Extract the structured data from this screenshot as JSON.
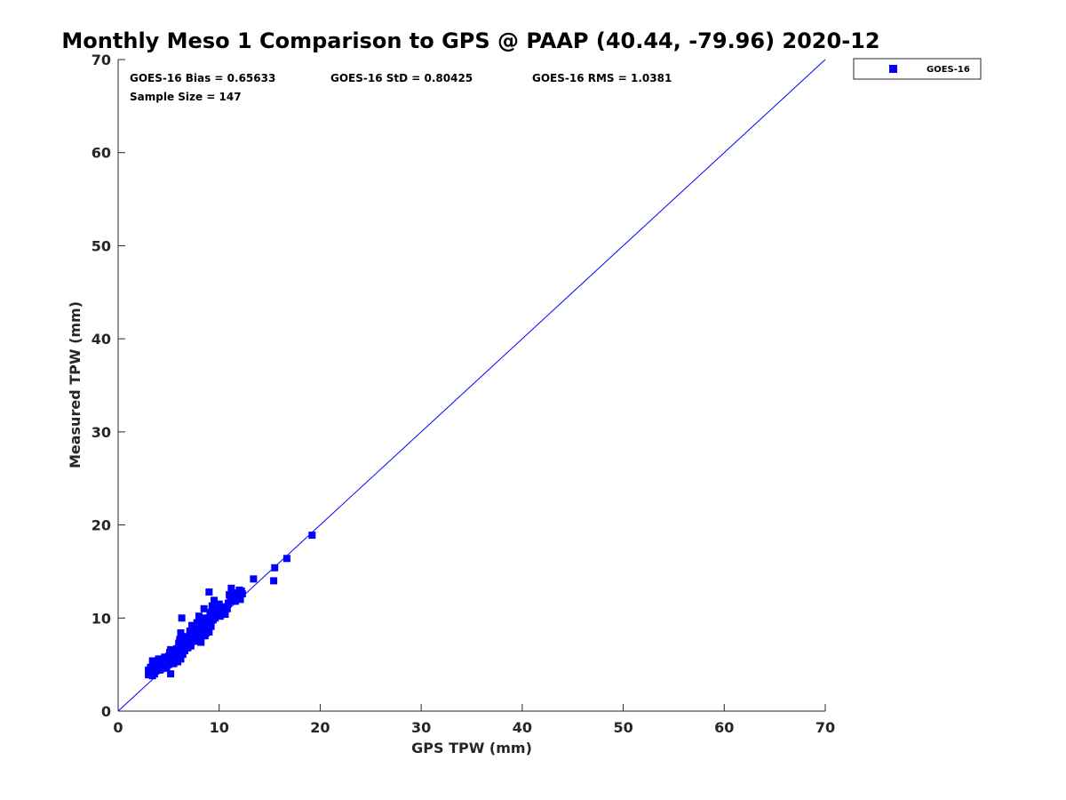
{
  "chart_data": {
    "type": "scatter",
    "title": "Monthly Meso 1 Comparison to GPS @ PAAP (40.44, -79.96) 2020-12",
    "xlabel": "GPS TPW (mm)",
    "ylabel": "Measured TPW (mm)",
    "xlim": [
      0,
      70
    ],
    "ylim": [
      0,
      70
    ],
    "xticks": [
      "0",
      "10",
      "20",
      "30",
      "40",
      "50",
      "60",
      "70"
    ],
    "yticks": [
      "0",
      "10",
      "20",
      "30",
      "40",
      "50",
      "60",
      "70"
    ],
    "grid": false,
    "legend_position": "top-right outside",
    "reference_line": {
      "type": "identity",
      "color": "#0000ff"
    },
    "stats": {
      "bias": "GOES-16 Bias = 0.65633",
      "std": "GOES-16 StD = 0.80425",
      "rms": "GOES-16 RMS = 1.0381",
      "sample_size": "Sample Size = 147"
    },
    "series": [
      {
        "name": "GOES-16",
        "color": "#0000ff",
        "marker": "square",
        "points": [
          [
            3.0,
            3.9
          ],
          [
            3.0,
            4.4
          ],
          [
            3.2,
            4.1
          ],
          [
            3.4,
            3.8
          ],
          [
            3.5,
            4.6
          ],
          [
            3.4,
            5.4
          ],
          [
            3.7,
            4.3
          ],
          [
            3.9,
            5.0
          ],
          [
            4.0,
            5.6
          ],
          [
            4.2,
            4.5
          ],
          [
            4.3,
            4.9
          ],
          [
            4.5,
            5.3
          ],
          [
            4.6,
            5.8
          ],
          [
            4.8,
            4.7
          ],
          [
            4.9,
            5.2
          ],
          [
            5.0,
            5.9
          ],
          [
            5.1,
            6.3
          ],
          [
            5.2,
            4.0
          ],
          [
            5.3,
            5.5
          ],
          [
            5.4,
            6.0
          ],
          [
            5.5,
            5.1
          ],
          [
            5.6,
            6.4
          ],
          [
            5.7,
            5.7
          ],
          [
            5.8,
            6.2
          ],
          [
            5.9,
            5.3
          ],
          [
            6.0,
            6.6
          ],
          [
            6.0,
            7.3
          ],
          [
            6.1,
            7.7
          ],
          [
            6.2,
            5.6
          ],
          [
            6.3,
            6.9
          ],
          [
            6.2,
            8.4
          ],
          [
            6.3,
            10.0
          ],
          [
            6.4,
            6.1
          ],
          [
            6.5,
            7.1
          ],
          [
            6.6,
            6.5
          ],
          [
            6.7,
            7.6
          ],
          [
            6.8,
            8.0
          ],
          [
            6.9,
            6.8
          ],
          [
            7.0,
            7.4
          ],
          [
            7.1,
            8.6
          ],
          [
            7.2,
            7.0
          ],
          [
            7.3,
            9.2
          ],
          [
            7.4,
            7.8
          ],
          [
            7.5,
            8.2
          ],
          [
            7.6,
            8.8
          ],
          [
            7.7,
            7.5
          ],
          [
            7.8,
            9.5
          ],
          [
            7.9,
            8.4
          ],
          [
            8.0,
            10.2
          ],
          [
            8.0,
            9.0
          ],
          [
            8.1,
            7.9
          ],
          [
            8.2,
            7.4
          ],
          [
            8.3,
            9.8
          ],
          [
            8.4,
            8.6
          ],
          [
            8.5,
            11.0
          ],
          [
            8.5,
            9.3
          ],
          [
            8.6,
            8.1
          ],
          [
            8.7,
            10.0
          ],
          [
            8.8,
            8.8
          ],
          [
            8.9,
            9.6
          ],
          [
            9.0,
            12.8
          ],
          [
            9.0,
            8.5
          ],
          [
            9.1,
            10.6
          ],
          [
            9.2,
            9.1
          ],
          [
            9.3,
            11.3
          ],
          [
            9.4,
            9.8
          ],
          [
            9.5,
            11.9
          ],
          [
            9.6,
            10.3
          ],
          [
            9.8,
            10.9
          ],
          [
            10.0,
            11.5
          ],
          [
            10.1,
            10.2
          ],
          [
            10.3,
            11.1
          ],
          [
            10.5,
            10.6
          ],
          [
            10.6,
            10.4
          ],
          [
            10.8,
            11.0
          ],
          [
            11.0,
            12.5
          ],
          [
            11.1,
            12.0
          ],
          [
            11.2,
            13.2
          ],
          [
            11.4,
            12.7
          ],
          [
            11.6,
            11.8
          ],
          [
            11.9,
            12.4
          ],
          [
            12.0,
            13.0
          ],
          [
            12.1,
            12.0
          ],
          [
            12.3,
            12.6
          ],
          [
            13.4,
            14.2
          ],
          [
            15.4,
            14.0
          ],
          [
            15.5,
            15.4
          ],
          [
            16.7,
            16.4
          ],
          [
            19.2,
            18.9
          ],
          [
            3.1,
            4.2
          ],
          [
            3.3,
            4.5
          ],
          [
            3.6,
            4.0
          ],
          [
            3.8,
            4.8
          ],
          [
            4.1,
            4.4
          ],
          [
            4.4,
            5.0
          ],
          [
            4.7,
            5.5
          ],
          [
            5.0,
            5.0
          ],
          [
            5.3,
            6.2
          ],
          [
            5.6,
            5.4
          ],
          [
            5.9,
            6.0
          ],
          [
            6.1,
            6.3
          ],
          [
            6.4,
            6.8
          ],
          [
            6.6,
            7.2
          ],
          [
            6.9,
            7.5
          ],
          [
            7.1,
            7.9
          ],
          [
            7.3,
            8.3
          ],
          [
            7.6,
            8.0
          ],
          [
            7.8,
            8.7
          ],
          [
            8.1,
            8.9
          ],
          [
            8.3,
            9.2
          ],
          [
            8.6,
            9.0
          ],
          [
            8.8,
            9.9
          ],
          [
            9.1,
            9.4
          ],
          [
            9.3,
            10.2
          ],
          [
            9.7,
            10.8
          ],
          [
            4.0,
            4.9
          ],
          [
            4.5,
            5.6
          ],
          [
            5.1,
            5.8
          ],
          [
            5.5,
            6.1
          ],
          [
            6.0,
            6.9
          ],
          [
            6.5,
            7.4
          ],
          [
            7.0,
            7.7
          ],
          [
            7.5,
            8.5
          ],
          [
            8.2,
            9.4
          ],
          [
            8.7,
            8.4
          ],
          [
            9.4,
            10.5
          ],
          [
            10.2,
            11.2
          ],
          [
            10.9,
            11.6
          ],
          [
            11.3,
            12.2
          ],
          [
            12.2,
            12.9
          ],
          [
            3.2,
            4.7
          ],
          [
            3.5,
            5.0
          ],
          [
            4.2,
            5.2
          ],
          [
            4.6,
            4.6
          ],
          [
            4.9,
            5.7
          ],
          [
            5.4,
            5.6
          ],
          [
            5.8,
            6.7
          ],
          [
            6.2,
            6.0
          ],
          [
            6.8,
            7.1
          ],
          [
            7.2,
            7.3
          ],
          [
            7.7,
            8.1
          ],
          [
            8.4,
            8.1
          ],
          [
            9.0,
            9.7
          ],
          [
            9.6,
            10.0
          ],
          [
            10.4,
            10.9
          ],
          [
            11.8,
            12.3
          ],
          [
            5.2,
            6.6
          ]
        ]
      }
    ]
  }
}
